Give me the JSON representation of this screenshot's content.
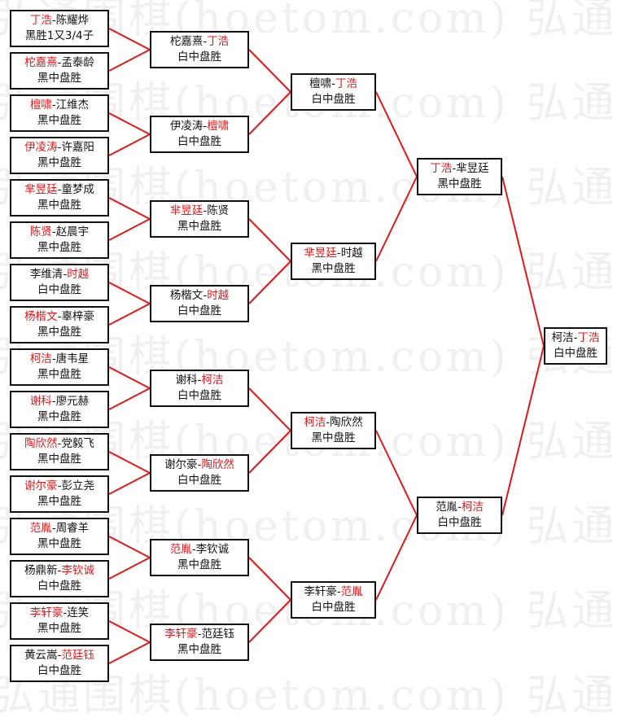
{
  "watermark": "弘通围棋(hoetom.com) 弘通",
  "separator": "-",
  "colors": {
    "winner": "#e0181b",
    "connector": "#e0181b",
    "border": "#111111"
  },
  "rounds": [
    [
      {
        "a": "丁浩",
        "b": "陈耀烨",
        "winner": "a",
        "result": "黑胜1又3/4子"
      },
      {
        "a": "柁嘉熹",
        "b": "孟泰龄",
        "winner": "a",
        "result": "黑中盘胜"
      },
      {
        "a": "檀啸",
        "b": "江维杰",
        "winner": "a",
        "result": "黑中盘胜"
      },
      {
        "a": "伊凌涛",
        "b": "许嘉阳",
        "winner": "a",
        "result": "黑中盘胜"
      },
      {
        "a": "芈昱廷",
        "b": "童梦成",
        "winner": "a",
        "result": "黑中盘胜"
      },
      {
        "a": "陈贤",
        "b": "赵晨宇",
        "winner": "a",
        "result": "黑中盘胜"
      },
      {
        "a": "李维清",
        "b": "时越",
        "winner": "b",
        "result": "白中盘胜"
      },
      {
        "a": "杨楷文",
        "b": "辜梓豪",
        "winner": "a",
        "result": "黑中盘胜"
      },
      {
        "a": "柯洁",
        "b": "唐韦星",
        "winner": "a",
        "result": "黑中盘胜"
      },
      {
        "a": "谢科",
        "b": "廖元赫",
        "winner": "a",
        "result": "黑中盘胜"
      },
      {
        "a": "陶欣然",
        "b": "党毅飞",
        "winner": "a",
        "result": "黑中盘胜"
      },
      {
        "a": "谢尔豪",
        "b": "彭立尧",
        "winner": "a",
        "result": "黑中盘胜"
      },
      {
        "a": "范胤",
        "b": "周睿羊",
        "winner": "a",
        "result": "黑中盘胜"
      },
      {
        "a": "杨鼎新",
        "b": "李钦诚",
        "winner": "b",
        "result": "白中盘胜"
      },
      {
        "a": "李轩豪",
        "b": "连笑",
        "winner": "a",
        "result": "黑中盘胜"
      },
      {
        "a": "黄云嵩",
        "b": "范廷钰",
        "winner": "b",
        "result": "白中盘胜"
      }
    ],
    [
      {
        "a": "柁嘉熹",
        "b": "丁浩",
        "winner": "b",
        "result": "白中盘胜"
      },
      {
        "a": "伊凌涛",
        "b": "檀啸",
        "winner": "b",
        "result": "白中盘胜"
      },
      {
        "a": "芈昱廷",
        "b": "陈贤",
        "winner": "a",
        "result": "黑中盘胜"
      },
      {
        "a": "杨楷文",
        "b": "时越",
        "winner": "b",
        "result": "白中盘胜"
      },
      {
        "a": "谢科",
        "b": "柯洁",
        "winner": "b",
        "result": "白中盘胜"
      },
      {
        "a": "谢尔豪",
        "b": "陶欣然",
        "winner": "b",
        "result": "白中盘胜"
      },
      {
        "a": "范胤",
        "b": "李钦诚",
        "winner": "a",
        "result": "黑中盘胜"
      },
      {
        "a": "李轩豪",
        "b": "范廷钰",
        "winner": "a",
        "result": "黑中盘胜"
      }
    ],
    [
      {
        "a": "檀啸",
        "b": "丁浩",
        "winner": "b",
        "result": "白中盘胜"
      },
      {
        "a": "芈昱廷",
        "b": "时越",
        "winner": "a",
        "result": "黑中盘胜"
      },
      {
        "a": "柯洁",
        "b": "陶欣然",
        "winner": "a",
        "result": "黑中盘胜"
      },
      {
        "a": "李轩豪",
        "b": "范胤",
        "winner": "b",
        "result": "白中盘胜"
      }
    ],
    [
      {
        "a": "丁浩",
        "b": "芈昱廷",
        "winner": "a",
        "result": "黑中盘胜"
      },
      {
        "a": "范胤",
        "b": "柯洁",
        "winner": "b",
        "result": "白中盘胜"
      }
    ],
    [
      {
        "a": "柯洁",
        "b": "丁浩",
        "winner": "b",
        "result": "白中盘胜"
      }
    ]
  ]
}
